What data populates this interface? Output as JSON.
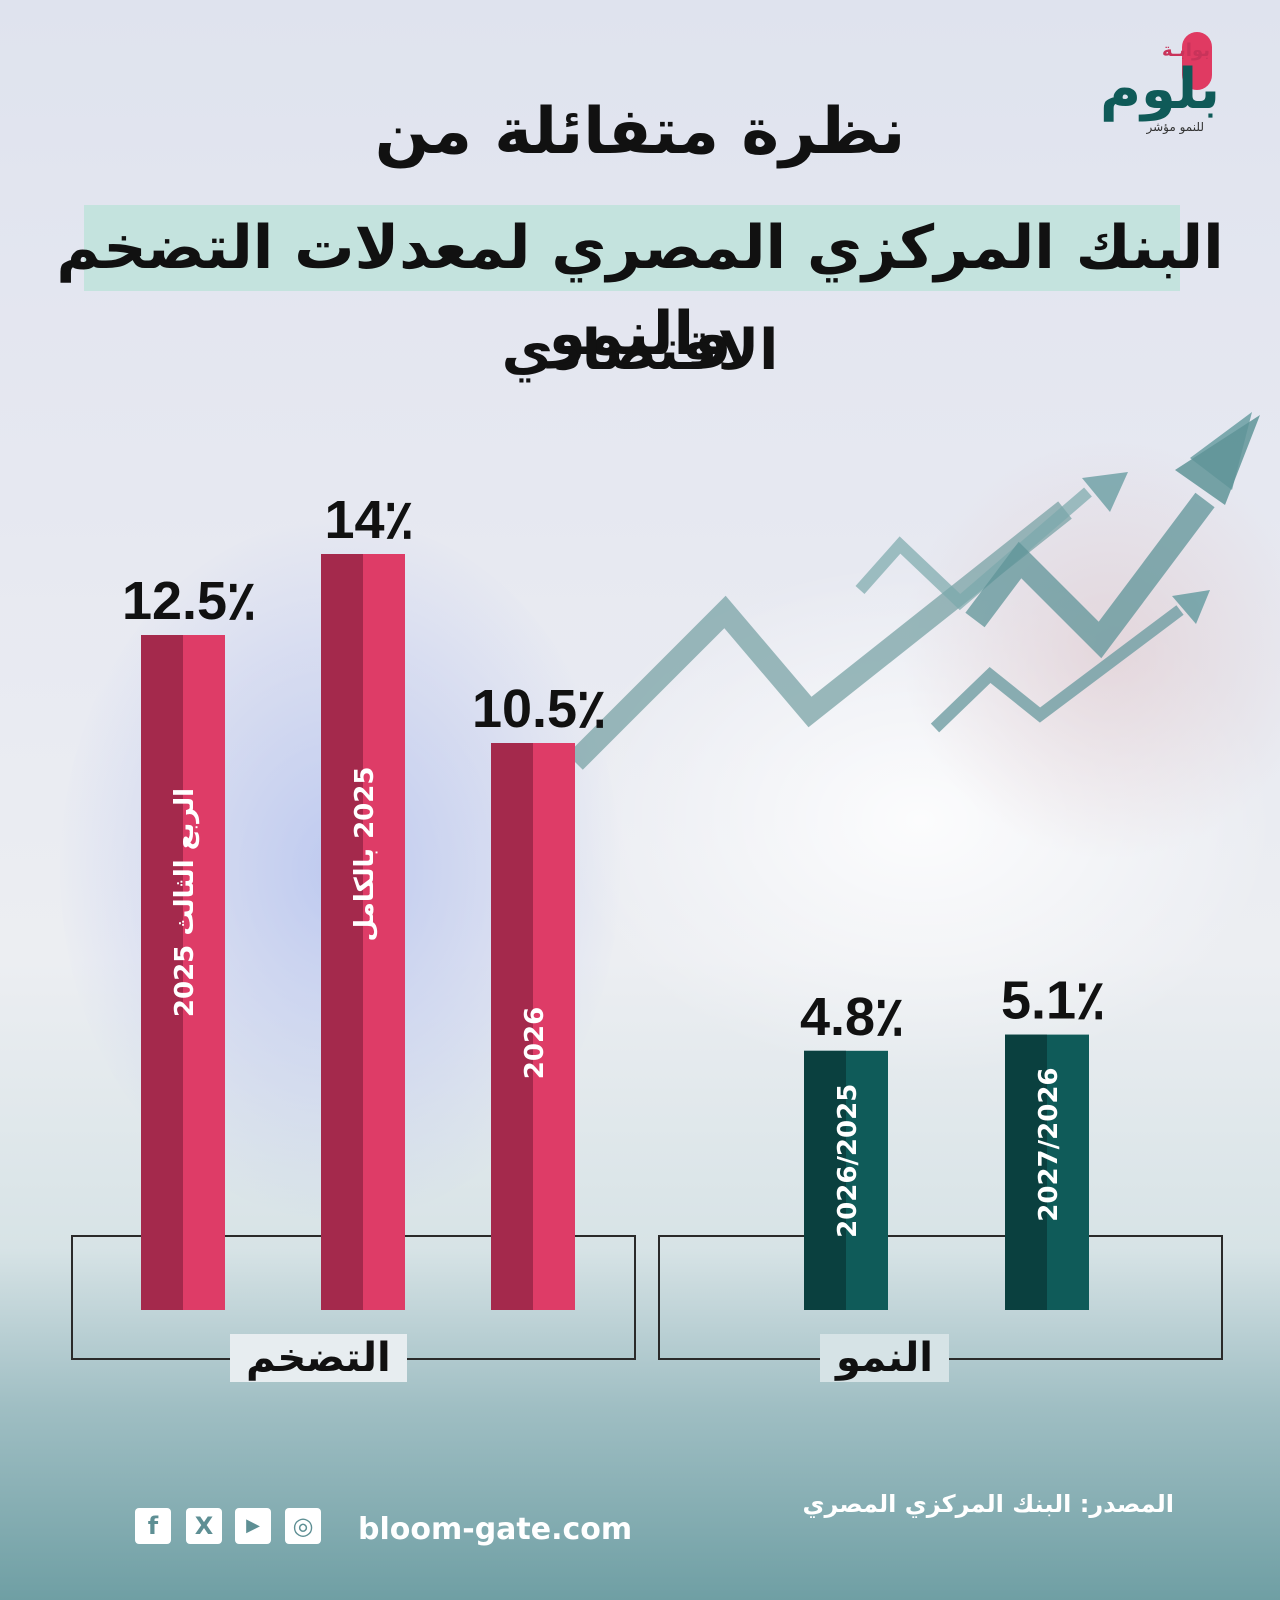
{
  "title": {
    "line1": "نظرة متفائلة من",
    "line2": "البنك المركزي المصري لمعدلات التضخم والنمو",
    "line3": "الاقتصادي"
  },
  "logo": {
    "top": "بوابـة",
    "name": "بلوم",
    "tagline": "للنمو مؤشر"
  },
  "colors": {
    "inflation_light": "#de3c67",
    "inflation_dark": "#a4294c",
    "growth_light": "#0f5b59",
    "growth_dark": "#0a403f",
    "accent_band": "#c4e3de",
    "arrow": "#6f9ea2"
  },
  "chart_data": [
    {
      "type": "bar",
      "group_label": "التضخم",
      "categories": [
        "الربع الثالث 2025",
        "2025 بالكامل",
        "2026"
      ],
      "values": [
        12.5,
        14,
        10.5
      ],
      "value_labels": [
        "12.5٪",
        "14٪",
        "10.5٪"
      ],
      "unit": "٪"
    },
    {
      "type": "bar",
      "group_label": "النمو",
      "categories": [
        "2026/2025",
        "2027/2026"
      ],
      "values": [
        4.8,
        5.1
      ],
      "value_labels": [
        "4.8٪",
        "5.1٪"
      ],
      "unit": "٪"
    }
  ],
  "footer": {
    "source": "المصدر: البنك المركزي المصري",
    "url": "bloom-gate.com",
    "social": [
      {
        "icon": "facebook-icon",
        "glyph": "f"
      },
      {
        "icon": "x-icon",
        "glyph": "X"
      },
      {
        "icon": "youtube-icon",
        "glyph": "▶"
      },
      {
        "icon": "instagram-icon",
        "glyph": "◎"
      }
    ]
  }
}
